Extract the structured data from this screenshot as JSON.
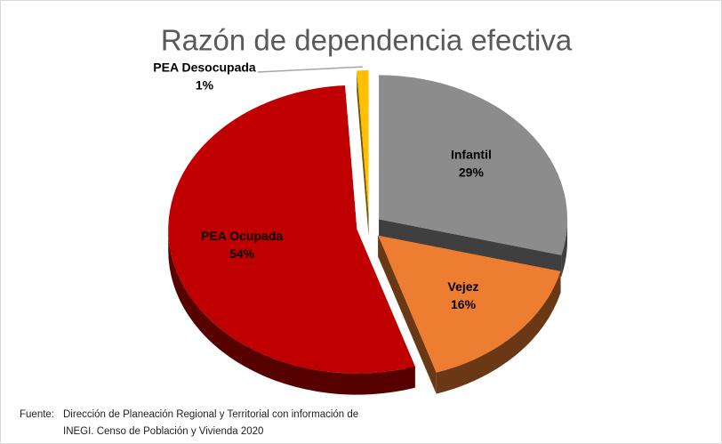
{
  "chart_data": {
    "type": "pie",
    "title": "Razón de dependencia efectiva",
    "categories": [
      "Infantil",
      "Vejez",
      "PEA Ocupada",
      "PEA Desocupada"
    ],
    "values": [
      29,
      16,
      54,
      1
    ],
    "value_labels": [
      "29%",
      "16%",
      "54%",
      "1%"
    ],
    "colors": [
      "#8c8c8c",
      "#ed7d31",
      "#c00000",
      "#ffc000"
    ],
    "source": {
      "label": "Fuente:",
      "lines": [
        "Dirección de Planeación Regional y Territorial con información de",
        "INEGI. Censo de Población y Vivienda 2020"
      ]
    }
  }
}
